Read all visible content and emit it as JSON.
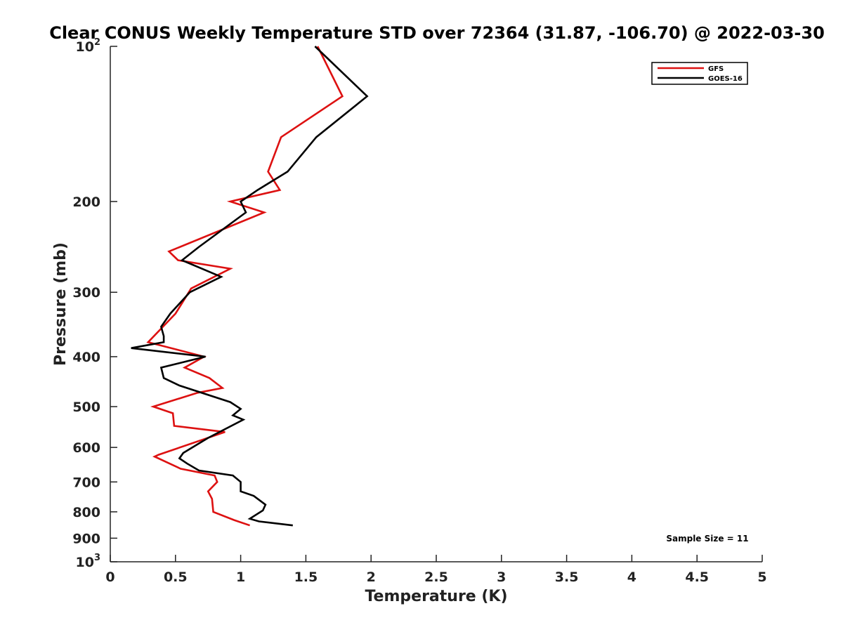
{
  "chart_data": {
    "type": "line",
    "title": "Clear CONUS Weekly Temperature STD over 72364 (31.87, -106.70) @ 2022-03-30",
    "xlabel": "Temperature (K)",
    "ylabel": "Pressure (mb)",
    "xlim": [
      0,
      5
    ],
    "ylim": [
      100,
      1000
    ],
    "y_scale": "log",
    "y_reversed": true,
    "x_ticks": [
      "0",
      "0.5",
      "1",
      "1.5",
      "2",
      "2.5",
      "3",
      "3.5",
      "4",
      "4.5",
      "5"
    ],
    "y_ticks": [
      {
        "value": 100,
        "base": "10",
        "exp": "2"
      },
      {
        "value": 200,
        "label": "200"
      },
      {
        "value": 300,
        "label": "300"
      },
      {
        "value": 400,
        "label": "400"
      },
      {
        "value": 500,
        "label": "500"
      },
      {
        "value": 600,
        "label": "600"
      },
      {
        "value": 700,
        "label": "700"
      },
      {
        "value": 800,
        "label": "800"
      },
      {
        "value": 900,
        "label": "900"
      },
      {
        "value": 1000,
        "base": "10",
        "exp": "3"
      }
    ],
    "grid": false,
    "legend_position": "top-right",
    "annotation": "Sample Size = 11",
    "series": [
      {
        "name": "GFS",
        "color": "#dd1111",
        "points": [
          [
            1.59,
            100
          ],
          [
            1.78,
            125
          ],
          [
            1.31,
            150
          ],
          [
            1.21,
            175
          ],
          [
            1.3,
            190
          ],
          [
            0.92,
            200
          ],
          [
            1.18,
            210
          ],
          [
            0.45,
            250
          ],
          [
            0.52,
            260
          ],
          [
            0.92,
            270
          ],
          [
            0.62,
            295
          ],
          [
            0.5,
            330
          ],
          [
            0.29,
            375
          ],
          [
            0.72,
            400
          ],
          [
            0.57,
            420
          ],
          [
            0.76,
            440
          ],
          [
            0.86,
            460
          ],
          [
            0.67,
            470
          ],
          [
            0.33,
            500
          ],
          [
            0.48,
            515
          ],
          [
            0.49,
            545
          ],
          [
            0.88,
            560
          ],
          [
            0.37,
            620
          ],
          [
            0.34,
            625
          ],
          [
            0.54,
            660
          ],
          [
            0.8,
            680
          ],
          [
            0.82,
            700
          ],
          [
            0.75,
            730
          ],
          [
            0.78,
            755
          ],
          [
            0.79,
            800
          ],
          [
            0.95,
            830
          ],
          [
            1.07,
            850
          ]
        ]
      },
      {
        "name": "GOES-16",
        "color": "#000000",
        "points": [
          [
            1.57,
            100
          ],
          [
            1.97,
            125
          ],
          [
            1.58,
            150
          ],
          [
            1.36,
            175
          ],
          [
            1.13,
            190
          ],
          [
            1.0,
            200
          ],
          [
            1.04,
            210
          ],
          [
            0.68,
            245
          ],
          [
            0.55,
            260
          ],
          [
            0.85,
            280
          ],
          [
            0.61,
            300
          ],
          [
            0.46,
            330
          ],
          [
            0.39,
            350
          ],
          [
            0.41,
            365
          ],
          [
            0.41,
            375
          ],
          [
            0.16,
            385
          ],
          [
            0.73,
            400
          ],
          [
            0.39,
            420
          ],
          [
            0.41,
            440
          ],
          [
            0.53,
            455
          ],
          [
            0.92,
            490
          ],
          [
            1.0,
            505
          ],
          [
            0.94,
            520
          ],
          [
            1.02,
            530
          ],
          [
            0.75,
            575
          ],
          [
            0.56,
            615
          ],
          [
            0.53,
            630
          ],
          [
            0.59,
            645
          ],
          [
            0.68,
            665
          ],
          [
            0.94,
            680
          ],
          [
            1.0,
            700
          ],
          [
            1.0,
            730
          ],
          [
            1.1,
            745
          ],
          [
            1.19,
            775
          ],
          [
            1.17,
            795
          ],
          [
            1.07,
            825
          ],
          [
            1.14,
            835
          ],
          [
            1.4,
            850
          ]
        ]
      }
    ]
  }
}
